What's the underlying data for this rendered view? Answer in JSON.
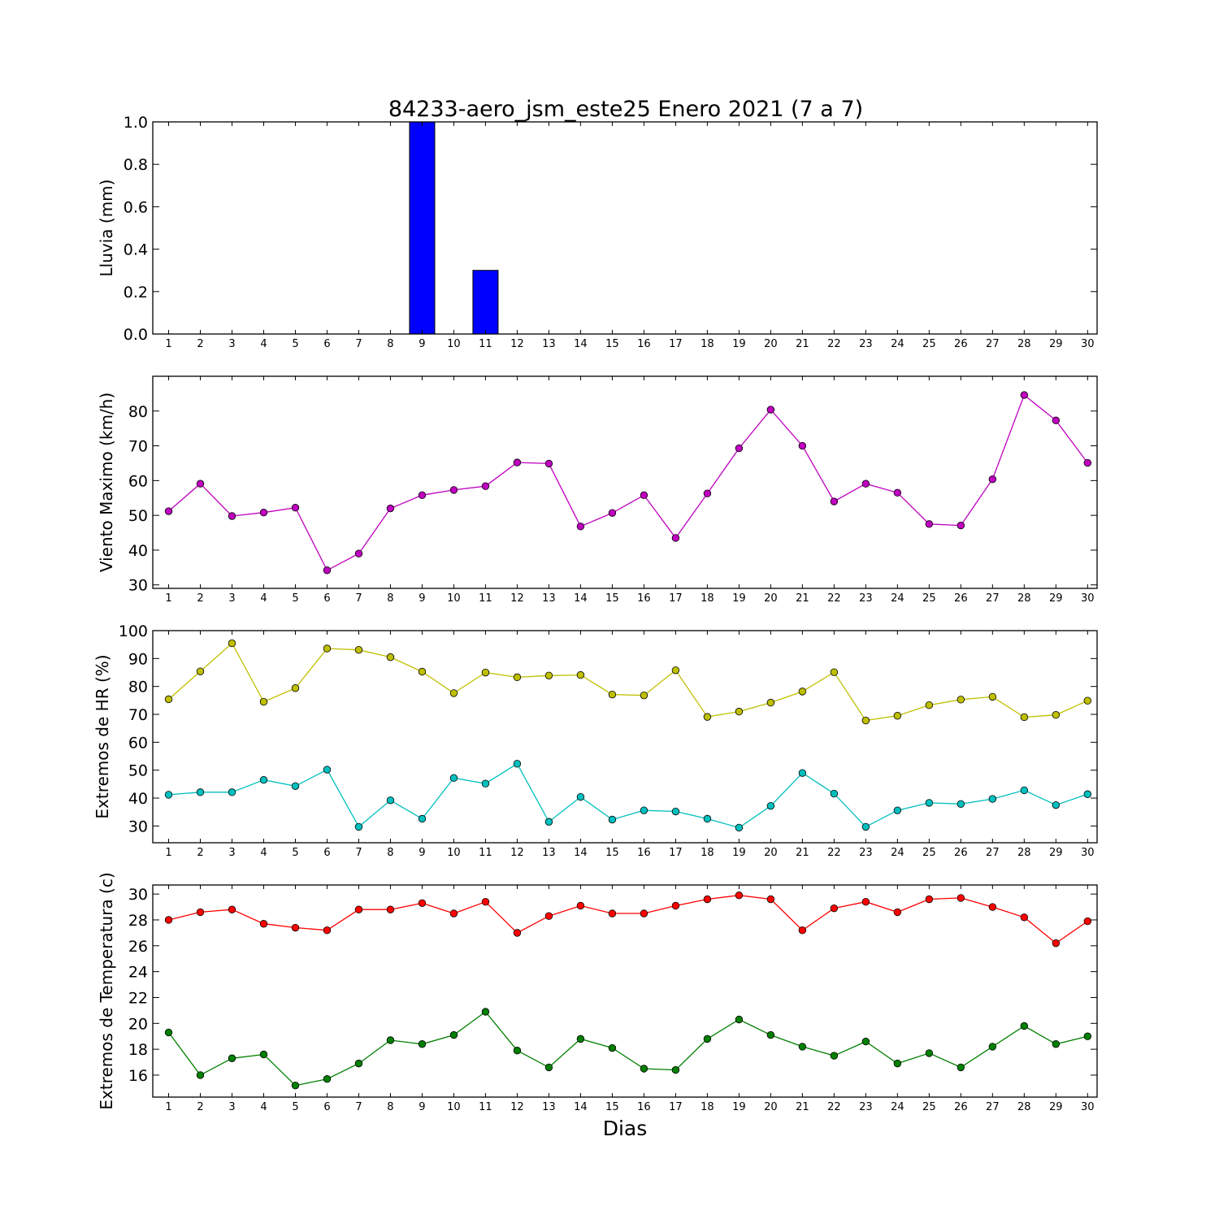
{
  "title": "84233-aero_jsm_este25 Enero 2021  (7 a 7)",
  "xlabel": "Dias",
  "chart_data": [
    {
      "type": "bar",
      "ylabel": "Lluvia (mm)",
      "ylim": [
        0,
        1.0
      ],
      "yticks": [
        "0.0",
        "0.2",
        "0.4",
        "0.6",
        "0.8",
        "1.0"
      ],
      "x": [
        1,
        2,
        3,
        4,
        5,
        6,
        7,
        8,
        9,
        10,
        11,
        12,
        13,
        14,
        15,
        16,
        17,
        18,
        19,
        20,
        21,
        22,
        23,
        24,
        25,
        26,
        27,
        28,
        29,
        30
      ],
      "values": [
        0,
        0,
        0,
        0,
        0,
        0,
        0,
        0,
        1.0,
        0,
        0.3,
        0,
        0,
        0,
        0,
        0,
        0,
        0,
        0,
        0,
        0,
        0,
        0,
        0,
        0,
        0,
        0,
        0,
        0,
        0
      ],
      "colors": {
        "bar": "#0000ff"
      }
    },
    {
      "type": "line",
      "ylabel": "Viento Maximo (km/h)",
      "ylim": [
        29,
        90
      ],
      "yticks": [
        "30",
        "40",
        "50",
        "60",
        "70",
        "80"
      ],
      "x": [
        1,
        2,
        3,
        4,
        5,
        6,
        7,
        8,
        9,
        10,
        11,
        12,
        13,
        14,
        15,
        16,
        17,
        18,
        19,
        20,
        21,
        22,
        23,
        24,
        25,
        26,
        27,
        28,
        29,
        30
      ],
      "series": [
        {
          "values": [
            51.2,
            59.1,
            49.8,
            50.8,
            52.2,
            34.2,
            39,
            52,
            55.8,
            57.3,
            58.4,
            65.2,
            64.9,
            46.8,
            50.7,
            55.8,
            43.5,
            56.3,
            69.3,
            80.4,
            70,
            54,
            59.1,
            56.5,
            47.5,
            47.1,
            60.4,
            84.6,
            77.3,
            65.1
          ],
          "color": "#bf00bf"
        }
      ]
    },
    {
      "type": "line",
      "ylabel": "Extremos de HR (%)",
      "ylim": [
        24,
        100
      ],
      "yticks": [
        "30",
        "40",
        "50",
        "60",
        "70",
        "80",
        "90",
        "100"
      ],
      "x": [
        1,
        2,
        3,
        4,
        5,
        6,
        7,
        8,
        9,
        10,
        11,
        12,
        13,
        14,
        15,
        16,
        17,
        18,
        19,
        20,
        21,
        22,
        23,
        24,
        25,
        26,
        27,
        28,
        29,
        30
      ],
      "series": [
        {
          "values": [
            75.4,
            85.4,
            95.5,
            74.5,
            79.4,
            93.6,
            93.1,
            90.5,
            85.3,
            77.6,
            85,
            83.3,
            83.9,
            84.1,
            77.1,
            76.8,
            85.8,
            69.1,
            71,
            74.2,
            78.2,
            85.1,
            67.8,
            69.5,
            73.3,
            75.3,
            76.3,
            69,
            69.8,
            74.9
          ],
          "color": "#bfbf00"
        },
        {
          "values": [
            41.2,
            42.1,
            42.1,
            46.5,
            44.3,
            50.2,
            29.7,
            39.2,
            32.6,
            47.2,
            45.2,
            52.3,
            31.5,
            40.4,
            32.3,
            35.6,
            35.2,
            32.6,
            29.4,
            37.2,
            49,
            41.6,
            29.7,
            35.6,
            38.3,
            37.9,
            39.7,
            42.8,
            37.5,
            41.4
          ],
          "color": "#00bfbf"
        }
      ]
    },
    {
      "type": "line",
      "ylabel": "Extremos de Temperatura (c)",
      "ylim": [
        14.3,
        30.7
      ],
      "yticks": [
        "16",
        "18",
        "20",
        "22",
        "24",
        "26",
        "28",
        "30"
      ],
      "x": [
        1,
        2,
        3,
        4,
        5,
        6,
        7,
        8,
        9,
        10,
        11,
        12,
        13,
        14,
        15,
        16,
        17,
        18,
        19,
        20,
        21,
        22,
        23,
        24,
        25,
        26,
        27,
        28,
        29,
        30
      ],
      "series": [
        {
          "values": [
            28.0,
            28.6,
            28.8,
            27.7,
            27.4,
            27.2,
            28.8,
            28.8,
            29.3,
            28.5,
            29.4,
            27.0,
            28.3,
            29.1,
            28.5,
            28.5,
            29.1,
            29.6,
            29.9,
            29.6,
            27.2,
            28.9,
            29.4,
            28.6,
            29.6,
            29.7,
            29.0,
            28.2,
            26.2,
            27.9
          ],
          "color": "#ff0000"
        },
        {
          "values": [
            19.3,
            16.0,
            17.3,
            17.6,
            15.2,
            15.7,
            16.9,
            18.7,
            18.4,
            19.1,
            20.9,
            17.9,
            16.6,
            18.8,
            18.1,
            16.5,
            16.4,
            18.8,
            20.3,
            19.1,
            18.2,
            17.5,
            18.6,
            16.9,
            17.7,
            16.6,
            18.2,
            19.8,
            18.4,
            19.0
          ],
          "color": "#007f00"
        }
      ]
    }
  ]
}
